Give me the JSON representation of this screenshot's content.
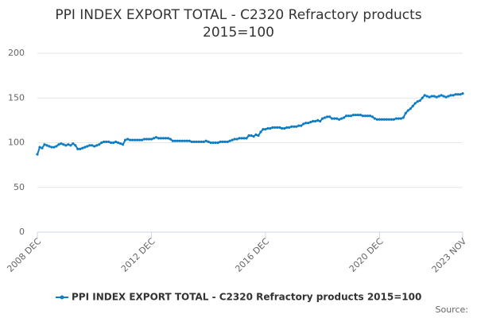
{
  "chart_data": {
    "type": "line",
    "title": [
      "PPI INDEX EXPORT TOTAL - C2320 Refractory products",
      "2015=100"
    ],
    "categories": [
      "2008 DEC",
      null,
      null,
      null,
      null,
      null,
      null,
      null,
      null,
      null,
      null,
      null,
      null,
      null,
      null,
      null,
      null,
      null,
      null,
      null,
      null,
      null,
      null,
      null,
      null,
      null,
      null,
      null,
      null,
      null,
      null,
      null,
      null,
      null,
      null,
      null,
      null,
      null,
      null,
      null,
      null,
      null,
      null,
      null,
      null,
      null,
      null,
      null,
      "2012 DEC",
      null,
      null,
      null,
      null,
      null,
      null,
      null,
      null,
      null,
      null,
      null,
      null,
      null,
      null,
      null,
      null,
      null,
      null,
      null,
      null,
      null,
      null,
      null,
      null,
      null,
      null,
      null,
      null,
      null,
      null,
      null,
      null,
      null,
      null,
      null,
      null,
      null,
      null,
      null,
      null,
      null,
      null,
      null,
      null,
      null,
      null,
      null,
      "2016 DEC",
      null,
      null,
      null,
      null,
      null,
      null,
      null,
      null,
      null,
      null,
      null,
      null,
      null,
      null,
      null,
      null,
      null,
      null,
      null,
      null,
      null,
      null,
      null,
      null,
      null,
      null,
      null,
      null,
      null,
      null,
      null,
      null,
      null,
      null,
      null,
      null,
      null,
      null,
      null,
      null,
      null,
      null,
      null,
      null,
      null,
      null,
      null,
      "2020 DEC",
      null,
      null,
      null,
      null,
      null,
      null,
      null,
      null,
      null,
      null,
      null,
      null,
      null,
      null,
      null,
      null,
      null,
      null,
      null,
      null,
      null,
      null,
      null,
      null,
      null,
      null,
      null,
      null,
      null,
      null,
      null,
      null,
      null,
      null,
      "2023 NOV"
    ],
    "series": [
      {
        "name": "PPI INDEX EXPORT TOTAL - C2320 Refractory products 2015=100",
        "color": "#0e7dc2",
        "values": [
          87,
          95,
          94,
          98,
          97,
          96,
          95,
          95,
          96,
          98,
          99,
          98,
          97,
          98,
          97,
          99,
          97,
          93,
          93,
          94,
          95,
          96,
          97,
          97,
          96,
          97,
          98,
          100,
          101,
          101,
          101,
          100,
          100,
          101,
          100,
          99,
          98,
          103,
          104,
          103,
          103,
          103,
          103,
          103,
          103,
          104,
          104,
          104,
          104,
          105,
          106,
          105,
          105,
          105,
          105,
          105,
          104,
          102,
          102,
          102,
          102,
          102,
          102,
          102,
          102,
          101,
          101,
          101,
          101,
          101,
          101,
          102,
          101,
          100,
          100,
          100,
          100,
          101,
          101,
          101,
          101,
          102,
          103,
          104,
          104,
          105,
          105,
          105,
          105,
          108,
          108,
          107,
          109,
          108,
          112,
          115,
          115,
          116,
          116,
          117,
          117,
          117,
          117,
          116,
          116,
          117,
          117,
          118,
          118,
          118,
          119,
          119,
          121,
          122,
          122,
          123,
          124,
          124,
          125,
          124,
          127,
          128,
          129,
          129,
          127,
          127,
          127,
          126,
          127,
          128,
          130,
          130,
          130,
          131,
          131,
          131,
          131,
          130,
          130,
          130,
          130,
          129,
          127,
          126,
          126,
          126,
          126,
          126,
          126,
          126,
          126,
          127,
          127,
          127,
          128,
          133,
          136,
          138,
          141,
          144,
          146,
          147,
          150,
          153,
          152,
          151,
          152,
          152,
          151,
          152,
          153,
          152,
          151,
          152,
          153,
          153,
          154,
          154,
          154,
          155
        ]
      }
    ],
    "ylim": [
      0,
      200
    ],
    "yticks": [
      0,
      50,
      100,
      150,
      200
    ],
    "grid": true,
    "source_label": "Source:"
  }
}
